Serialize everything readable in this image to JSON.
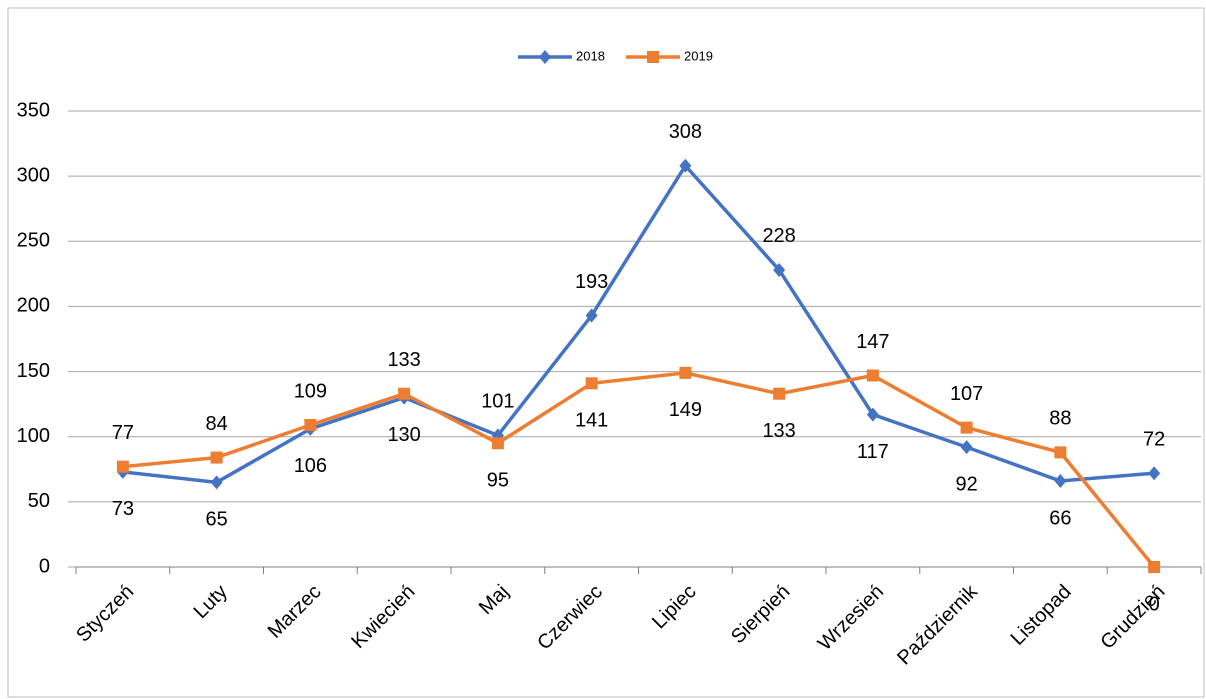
{
  "chart_data": {
    "type": "line",
    "categories": [
      "Styczeń",
      "Luty",
      "Marzec",
      "Kwiecień",
      "Maj",
      "Czerwiec",
      "Lipiec",
      "Sierpień",
      "Wrzesień",
      "Październik",
      "Listopad",
      "Grudzień"
    ],
    "series": [
      {
        "name": "2018",
        "color": "#4472c4",
        "marker": "diamond",
        "values": [
          73,
          65,
          106,
          130,
          101,
          193,
          308,
          228,
          117,
          92,
          66,
          72
        ]
      },
      {
        "name": "2019",
        "color": "#ed7d31",
        "marker": "square",
        "values": [
          77,
          84,
          109,
          133,
          95,
          141,
          149,
          133,
          147,
          107,
          88,
          0
        ]
      }
    ],
    "ylim": [
      0,
      350
    ],
    "yticks": [
      0,
      50,
      100,
      150,
      200,
      250,
      300,
      350
    ],
    "grid": true,
    "legend": "top"
  }
}
